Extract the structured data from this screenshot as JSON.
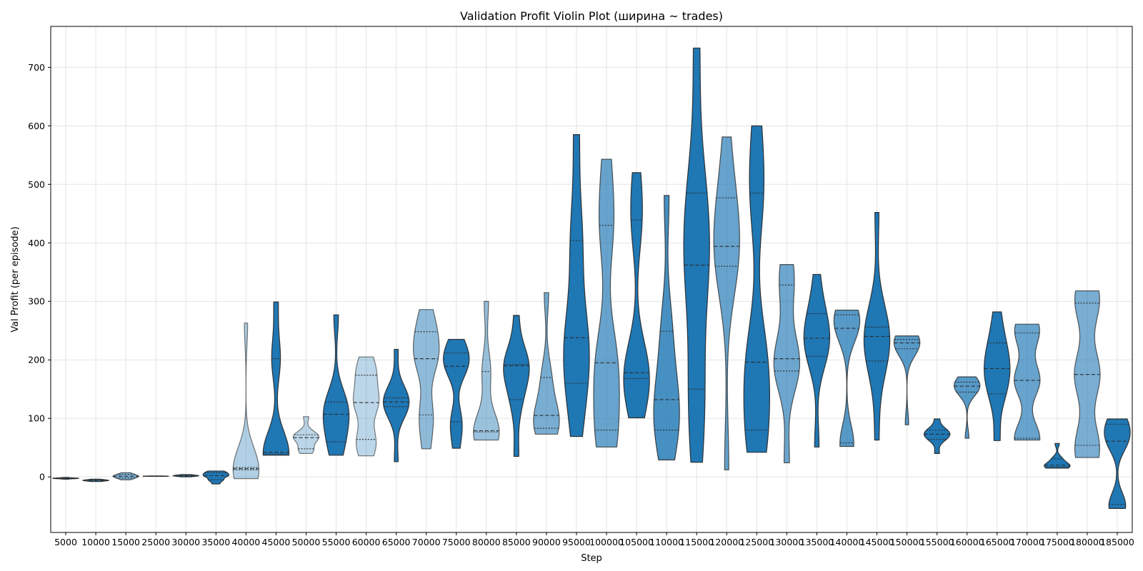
{
  "chart_data": {
    "type": "violin",
    "title": "Validation Profit Violin Plot (ширина ~ trades)",
    "xlabel": "Step",
    "ylabel": "Val Profit (per episode)",
    "ylim": [
      -95,
      770
    ],
    "yticks": [
      0,
      100,
      200,
      300,
      400,
      500,
      600,
      700
    ],
    "grid": true,
    "base_color": "#1f77b4",
    "categories": [
      "5000",
      "10000",
      "15000",
      "25000",
      "30000",
      "35000",
      "40000",
      "45000",
      "50000",
      "55000",
      "60000",
      "65000",
      "70000",
      "75000",
      "80000",
      "85000",
      "90000",
      "95000",
      "100000",
      "105000",
      "110000",
      "115000",
      "120000",
      "125000",
      "130000",
      "135000",
      "140000",
      "145000",
      "150000",
      "155000",
      "160000",
      "165000",
      "170000",
      "175000",
      "180000",
      "185000"
    ],
    "violins": [
      {
        "min": -4,
        "max": -1,
        "q1": -3,
        "median": -2.5,
        "q3": -2,
        "opacity": 0.95
      },
      {
        "min": -8,
        "max": -4,
        "q1": -7,
        "median": -6,
        "q3": -5,
        "opacity": 0.95
      },
      {
        "min": -5,
        "max": 7,
        "q1": -2,
        "median": 1,
        "q3": 4,
        "opacity": 0.6
      },
      {
        "min": 1,
        "max": 1.5,
        "q1": 1,
        "median": 1.2,
        "q3": 1.4,
        "opacity": 0.95
      },
      {
        "min": 0,
        "max": 4,
        "q1": 1,
        "median": 2,
        "q3": 3,
        "opacity": 0.9
      },
      {
        "min": -12,
        "max": 10,
        "q1": -5,
        "median": 2,
        "q3": 7,
        "opacity": 1
      },
      {
        "min": -3,
        "max": 263,
        "q1": 12,
        "median": 14,
        "q3": 16,
        "opacity": 0.35
      },
      {
        "min": 37,
        "max": 299,
        "q1": 39,
        "median": 42,
        "q3": 202,
        "opacity": 1
      },
      {
        "min": 40,
        "max": 103,
        "q1": 48,
        "median": 67,
        "q3": 72,
        "opacity": 0.3
      },
      {
        "min": 37,
        "max": 277,
        "q1": 60,
        "median": 107,
        "q3": 128,
        "opacity": 1
      },
      {
        "min": 36,
        "max": 205,
        "q1": 64,
        "median": 127,
        "q3": 174,
        "opacity": 0.3
      },
      {
        "min": 26,
        "max": 218,
        "q1": 120,
        "median": 128,
        "q3": 135,
        "opacity": 1
      },
      {
        "min": 48,
        "max": 286,
        "q1": 106,
        "median": 202,
        "q3": 248,
        "opacity": 0.5
      },
      {
        "min": 49,
        "max": 235,
        "q1": 94,
        "median": 189,
        "q3": 212,
        "opacity": 1
      },
      {
        "min": 63,
        "max": 300,
        "q1": 77,
        "median": 79,
        "q3": 180,
        "opacity": 0.45
      },
      {
        "min": 35,
        "max": 276,
        "q1": 132,
        "median": 190,
        "q3": 192,
        "opacity": 1
      },
      {
        "min": 73,
        "max": 315,
        "q1": 83,
        "median": 105,
        "q3": 170,
        "opacity": 0.6
      },
      {
        "min": 69,
        "max": 585,
        "q1": 160,
        "median": 238,
        "q3": 404,
        "opacity": 1
      },
      {
        "min": 51,
        "max": 543,
        "q1": 80,
        "median": 195,
        "q3": 430,
        "opacity": 0.68
      },
      {
        "min": 101,
        "max": 520,
        "q1": 168,
        "median": 178,
        "q3": 439,
        "opacity": 1
      },
      {
        "min": 29,
        "max": 481,
        "q1": 80,
        "median": 132,
        "q3": 249,
        "opacity": 0.82
      },
      {
        "min": 25,
        "max": 733,
        "q1": 150,
        "median": 362,
        "q3": 485,
        "opacity": 1
      },
      {
        "min": 12,
        "max": 581,
        "q1": 360,
        "median": 394,
        "q3": 477,
        "opacity": 0.68
      },
      {
        "min": 42,
        "max": 600,
        "q1": 80,
        "median": 196,
        "q3": 485,
        "opacity": 1
      },
      {
        "min": 24,
        "max": 363,
        "q1": 181,
        "median": 202,
        "q3": 328,
        "opacity": 0.65
      },
      {
        "min": 51,
        "max": 346,
        "q1": 206,
        "median": 237,
        "q3": 279,
        "opacity": 1
      },
      {
        "min": 52,
        "max": 285,
        "q1": 58,
        "median": 254,
        "q3": 277,
        "opacity": 0.75
      },
      {
        "min": 63,
        "max": 452,
        "q1": 198,
        "median": 240,
        "q3": 256,
        "opacity": 1
      },
      {
        "min": 89,
        "max": 241,
        "q1": 219,
        "median": 229,
        "q3": 235,
        "opacity": 0.75
      },
      {
        "min": 40,
        "max": 99,
        "q1": 64,
        "median": 73,
        "q3": 80,
        "opacity": 1
      },
      {
        "min": 66,
        "max": 171,
        "q1": 145,
        "median": 155,
        "q3": 162,
        "opacity": 0.75
      },
      {
        "min": 62,
        "max": 282,
        "q1": 142,
        "median": 185,
        "q3": 229,
        "opacity": 1
      },
      {
        "min": 63,
        "max": 261,
        "q1": 66,
        "median": 165,
        "q3": 246,
        "opacity": 0.68
      },
      {
        "min": 15,
        "max": 57,
        "q1": 17,
        "median": 20,
        "q3": 31,
        "opacity": 1
      },
      {
        "min": 33,
        "max": 318,
        "q1": 54,
        "median": 175,
        "q3": 297,
        "opacity": 0.6
      },
      {
        "min": -54,
        "max": 99,
        "q1": -47,
        "median": 61,
        "q3": 90,
        "opacity": 1
      }
    ]
  }
}
